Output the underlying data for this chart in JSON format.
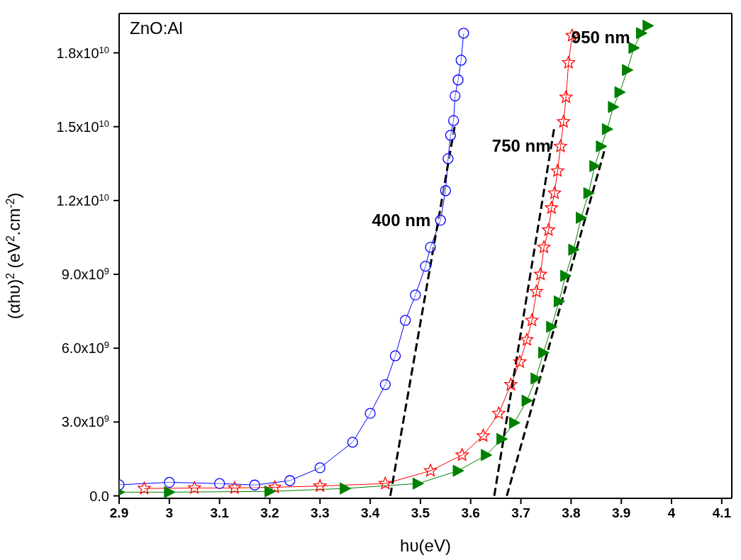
{
  "chart_data": {
    "type": "line",
    "xlabel": "hυ(eV)",
    "ylabel": "(αhυ)$^{2}$ (eV$^{2}$.cm$^{-2}$)",
    "xlim": [
      2.9,
      4.12
    ],
    "xticks": [
      2.9,
      3.0,
      3.1,
      3.2,
      3.3,
      3.4,
      3.5,
      3.6,
      3.7,
      3.8,
      3.9,
      4.0,
      4.1
    ],
    "ylim": [
      -100000000.0,
      19600000000.0
    ],
    "yticks": [
      {
        "value": 0,
        "label": "0.0"
      },
      {
        "value": 3000000000.0,
        "label": "3.0x10$^{9}$"
      },
      {
        "value": 6000000000.0,
        "label": "6.0x10$^{9}$"
      },
      {
        "value": 9000000000.0,
        "label": "9.0x10$^{9}$"
      },
      {
        "value": 12000000000.0,
        "label": "1.2x10$^{10}$"
      },
      {
        "value": 15000000000.0,
        "label": "1.5x10$^{10}$"
      },
      {
        "value": 18000000000.0,
        "label": "1.8x10$^{10}$"
      }
    ],
    "series": [
      {
        "name": "400 nm",
        "color": "#0000ff",
        "marker": "circle",
        "x": [
          2.9,
          3.0,
          3.1,
          3.17,
          3.24,
          3.3,
          3.365,
          3.4,
          3.43,
          3.45,
          3.47,
          3.49,
          3.51,
          3.52,
          3.54,
          3.55,
          3.555,
          3.56,
          3.566,
          3.569,
          3.575,
          3.581,
          3.586
        ],
        "values": [
          450000000.0,
          550000000.0,
          500000000.0,
          440000000.0,
          620000000.0,
          1140000000.0,
          2180000000.0,
          3350000000.0,
          4520000000.0,
          5690000000.0,
          7130000000.0,
          8160000000.0,
          9330000000.0,
          10100000000.0,
          11200000000.0,
          12400000000.0,
          13700000000.0,
          14650000000.0,
          15250000000.0,
          16250000000.0,
          16900000000.0,
          17700000000.0,
          18800000000.0
        ]
      },
      {
        "name": "750 nm",
        "color": "#ff0000",
        "marker": "star",
        "x": [
          2.95,
          3.05,
          3.13,
          3.21,
          3.3,
          3.43,
          3.52,
          3.583,
          3.625,
          3.656,
          3.68,
          3.698,
          3.712,
          3.722,
          3.731,
          3.739,
          3.746,
          3.755,
          3.761,
          3.767,
          3.773,
          3.779,
          3.785,
          3.79,
          3.795,
          3.802
        ],
        "values": [
          300000000.0,
          320000000.0,
          320000000.0,
          350000000.0,
          400000000.0,
          500000000.0,
          1020000000.0,
          1660000000.0,
          2440000000.0,
          3350000000.0,
          4520000000.0,
          5440000000.0,
          6340000000.0,
          7130000000.0,
          8300000000.0,
          9000000000.0,
          10100000000.0,
          10800000000.0,
          11700000000.0,
          12300000000.0,
          13200000000.0,
          14200000000.0,
          15200000000.0,
          16200000000.0,
          17600000000.0,
          18700000000.0
        ]
      },
      {
        "name": "950 nm",
        "color": "#008000",
        "marker": "triangle",
        "x": [
          2.9,
          3.0,
          3.2,
          3.35,
          3.495,
          3.575,
          3.631,
          3.662,
          3.687,
          3.712,
          3.73,
          3.745,
          3.761,
          3.776,
          3.789,
          3.805,
          3.82,
          3.835,
          3.847,
          3.86,
          3.872,
          3.884,
          3.897,
          3.912,
          3.925,
          3.94,
          3.953
        ],
        "values": [
          150000000.0,
          150000000.0,
          180000000.0,
          300000000.0,
          500000000.0,
          1020000000.0,
          1660000000.0,
          2310000000.0,
          2970000000.0,
          3870000000.0,
          4770000000.0,
          5820000000.0,
          6870000000.0,
          7900000000.0,
          8940000000.0,
          10000000000.0,
          11300000000.0,
          12300000000.0,
          13400000000.0,
          14200000000.0,
          14900000000.0,
          15800000000.0,
          16400000000.0,
          17300000000.0,
          18200000000.0,
          18800000000.0,
          19100000000.0
        ]
      },
      {
        "color": "#000000",
        "marker": "none",
        "line_style": "dashed",
        "x": [
          3.44,
          3.568
        ],
        "values": [
          0,
          15000000000.0
        ]
      },
      {
        "color": "#000000",
        "marker": "none",
        "line_style": "dashed",
        "x": [
          3.647,
          3.766
        ],
        "values": [
          0,
          14900000000.0
        ]
      },
      {
        "color": "#000000",
        "marker": "none",
        "line_style": "dashed",
        "x": [
          3.672,
          3.866
        ],
        "values": [
          0,
          14000000000.0
        ]
      }
    ],
    "annotations": [
      "ZnO:Al"
    ]
  }
}
